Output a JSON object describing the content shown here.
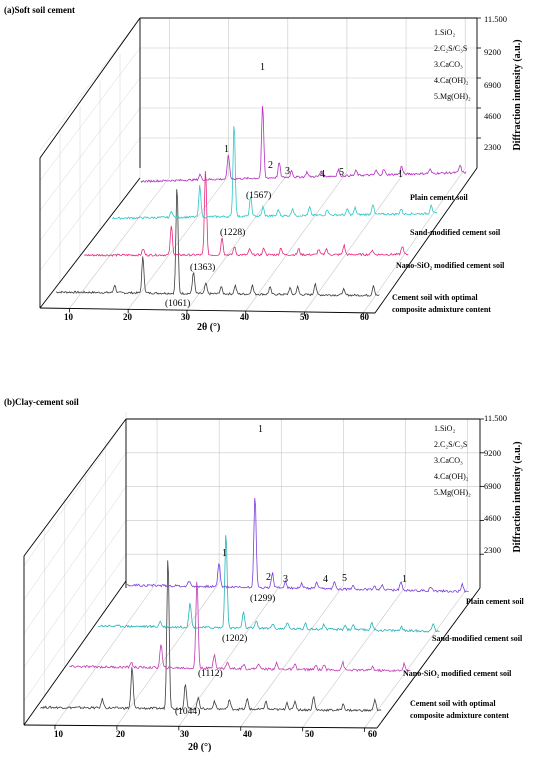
{
  "figure": {
    "panels": [
      {
        "title": "(a)Soft soil cement",
        "y_axis_label": "Diffraction intensity (a.u.)",
        "y_ticks": [
          "11.500",
          "9200",
          "6900",
          "4600",
          "2300"
        ],
        "x_axis_label": "2θ (°)",
        "x_ticks": [
          "10",
          "20",
          "30",
          "40",
          "50",
          "60"
        ],
        "legend": [
          "1.SiO₂",
          "2.C₂S/C₃S",
          "3.CaCO₃",
          "4.Ca(OH)₂",
          "5.Mg(OH)₂"
        ],
        "peak_markers": [
          "1",
          "1",
          "2",
          "3",
          "4",
          "5",
          "1"
        ],
        "series_labels": [
          "Plain cement soil",
          "Sand-modified cement soil",
          "Nano-SiO₂ modified cement soil",
          "Cement soil with optimal composite admixture content"
        ],
        "peak_values": [
          "(1567)",
          "(1228)",
          "(1363)",
          "(1061)"
        ]
      },
      {
        "title": "(b)Clay-cement soil",
        "y_axis_label": "Diffraction intensity (a.u.)",
        "y_ticks": [
          "11.500",
          "9200",
          "6900",
          "4600",
          "2300"
        ],
        "x_axis_label": "2θ (°)",
        "x_ticks": [
          "10",
          "20",
          "30",
          "40",
          "50",
          "60"
        ],
        "legend": [
          "1.SiO₂",
          "2.C₂S/C₃S",
          "3.CaCO₃",
          "4.Ca(OH)₂",
          "5.Mg(OH)₂"
        ],
        "peak_markers": [
          "1",
          "1",
          "2",
          "3",
          "4",
          "5",
          "1"
        ],
        "series_labels": [
          "Plain cement soil",
          "Sand-modified cement soil",
          "Nano-SiO₂ modified cement soil",
          "Cement soil with optimal composite admixture content"
        ],
        "peak_values": [
          "(1299)",
          "(1202)",
          "(1112)",
          "(1044)"
        ]
      }
    ]
  },
  "chart_data": [
    {
      "type": "line",
      "title": "(a)Soft soil cement",
      "xlabel": "2θ (°)",
      "ylabel": "Diffraction intensity (a.u.)",
      "xlim": [
        5,
        62
      ],
      "ylim": [
        0,
        11500
      ],
      "y_ticks": [
        2300,
        4600,
        6900,
        9200,
        11500
      ],
      "x_ticks": [
        10,
        20,
        30,
        40,
        50,
        60
      ],
      "grid": true,
      "colors": [
        "#3c3c3c",
        "#e8287e",
        "#2fc6c4",
        "#b42ec2"
      ],
      "peaks": [
        {
          "x": 16.0,
          "y": 600
        },
        {
          "x": 20.8,
          "y": 2800
        },
        {
          "x": 26.6,
          "y": 8300
        },
        {
          "x": 29.4,
          "y": 1700
        },
        {
          "x": 31.5,
          "y": 800
        },
        {
          "x": 34.1,
          "y": 550
        },
        {
          "x": 36.5,
          "y": 650
        },
        {
          "x": 39.4,
          "y": 700
        },
        {
          "x": 42.4,
          "y": 550
        },
        {
          "x": 45.8,
          "y": 500
        },
        {
          "x": 47.1,
          "y": 600
        },
        {
          "x": 50.1,
          "y": 900
        },
        {
          "x": 54.9,
          "y": 450
        },
        {
          "x": 60.0,
          "y": 800
        }
      ],
      "series": [
        {
          "name": "Plain cement soil",
          "peak_value": 1567,
          "scale": 1.0
        },
        {
          "name": "Sand-modified cement soil",
          "peak_value": 1228,
          "scale": 0.8
        },
        {
          "name": "Nano-SiO₂ modified cement soil",
          "peak_value": 1363,
          "scale": 0.87
        },
        {
          "name": "Cement soil with optimal composite admixture content",
          "peak_value": 1061,
          "scale": 0.68
        }
      ]
    },
    {
      "type": "line",
      "title": "(b)Clay-cement soil",
      "xlabel": "2θ (°)",
      "ylabel": "Diffraction intensity (a.u.)",
      "xlim": [
        5,
        62
      ],
      "ylim": [
        0,
        11500
      ],
      "y_ticks": [
        2300,
        4600,
        6900,
        9200,
        11500
      ],
      "x_ticks": [
        10,
        20,
        30,
        40,
        50,
        60
      ],
      "grid": true,
      "colors": [
        "#3c3c3c",
        "#c03ab4",
        "#25b3b8",
        "#7a3fd6"
      ],
      "peaks": [
        {
          "x": 16.0,
          "y": 600
        },
        {
          "x": 20.8,
          "y": 2800
        },
        {
          "x": 26.6,
          "y": 10500
        },
        {
          "x": 29.4,
          "y": 1700
        },
        {
          "x": 31.5,
          "y": 800
        },
        {
          "x": 34.1,
          "y": 550
        },
        {
          "x": 36.5,
          "y": 650
        },
        {
          "x": 39.4,
          "y": 700
        },
        {
          "x": 42.4,
          "y": 550
        },
        {
          "x": 45.8,
          "y": 500
        },
        {
          "x": 47.1,
          "y": 600
        },
        {
          "x": 50.1,
          "y": 900
        },
        {
          "x": 54.9,
          "y": 450
        },
        {
          "x": 60.0,
          "y": 800
        }
      ],
      "series": [
        {
          "name": "Plain cement soil",
          "peak_value": 1299,
          "scale": 1.0
        },
        {
          "name": "Sand-modified cement soil",
          "peak_value": 1202,
          "scale": 0.58
        },
        {
          "name": "Nano-SiO₂ modified cement soil",
          "peak_value": 1112,
          "scale": 0.62
        },
        {
          "name": "Cement soil with optimal composite admixture content",
          "peak_value": 1044,
          "scale": 0.6
        }
      ]
    }
  ]
}
